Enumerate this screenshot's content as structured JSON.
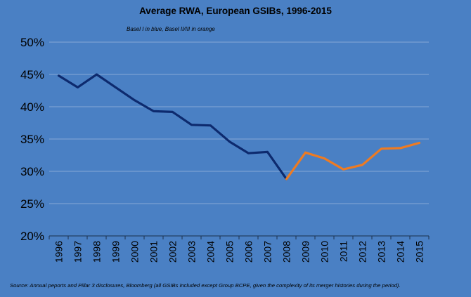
{
  "chart_data": {
    "type": "line",
    "title": "Average RWA, European GSIBs, 1996-2015",
    "subtitle": "Basel I in blue, Basel II/III in orange",
    "source": "Source: Annual peports and Pillar 3 disclosures, Bloomberg (all GSIBs included except Group BCPE, given the complexity of its merger histories during the period).",
    "xlabel": "",
    "ylabel": "",
    "categories": [
      "1996",
      "1997",
      "1998",
      "1999",
      "2000",
      "2001",
      "2002",
      "2003",
      "2004",
      "2005",
      "2006",
      "2007",
      "2008",
      "2009",
      "2010",
      "2011",
      "2012",
      "2013",
      "2014",
      "2015"
    ],
    "series": [
      {
        "color": "#0d2a6e",
        "values": [
          44.8,
          43.0,
          45.0,
          43.0,
          41.0,
          39.3,
          39.2,
          37.2,
          37.1,
          34.6,
          32.8,
          33.0,
          28.8,
          null,
          null,
          null,
          null,
          null,
          null,
          null
        ]
      },
      {
        "color": "#ee7b22",
        "values": [
          null,
          null,
          null,
          null,
          null,
          null,
          null,
          null,
          null,
          null,
          null,
          null,
          28.8,
          32.9,
          32.0,
          30.3,
          31.0,
          33.5,
          33.6,
          34.4
        ]
      }
    ],
    "yticks": [
      "20%",
      "25%",
      "30%",
      "35%",
      "40%",
      "45%",
      "50%"
    ],
    "ylim": [
      20,
      50
    ],
    "grid": true,
    "legend": "none"
  }
}
